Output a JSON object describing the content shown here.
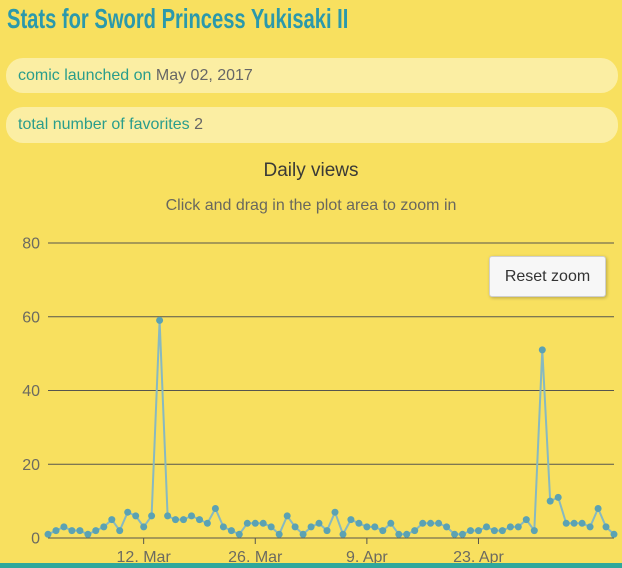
{
  "page": {
    "title": "Stats for Sword Princess Yukisaki II"
  },
  "info_bars": [
    {
      "label": "comic launched on",
      "value": "May 02, 2017"
    },
    {
      "label": "total number of favorites",
      "value": "2"
    }
  ],
  "chart": {
    "reset_zoom_label": "Reset zoom"
  },
  "chart_data": {
    "type": "line",
    "title": "Daily views",
    "subtitle": "Click and drag in the plot area to zoom in",
    "legend": "off",
    "grid": "horizontal",
    "ylim": [
      0,
      80
    ],
    "yticks": [
      0,
      20,
      40,
      60,
      80
    ],
    "xticks": [
      "12. Mar",
      "26. Mar",
      "9. Apr",
      "23. Apr"
    ],
    "x": [
      "28. Feb",
      "1. Mar",
      "2. Mar",
      "3. Mar",
      "4. Mar",
      "5. Mar",
      "6. Mar",
      "7. Mar",
      "8. Mar",
      "9. Mar",
      "10. Mar",
      "11. Mar",
      "12. Mar",
      "13. Mar",
      "14. Mar",
      "15. Mar",
      "16. Mar",
      "17. Mar",
      "18. Mar",
      "19. Mar",
      "20. Mar",
      "21. Mar",
      "22. Mar",
      "23. Mar",
      "24. Mar",
      "25. Mar",
      "26. Mar",
      "27. Mar",
      "28. Mar",
      "29. Mar",
      "30. Mar",
      "31. Mar",
      "1. Apr",
      "2. Apr",
      "3. Apr",
      "4. Apr",
      "5. Apr",
      "6. Apr",
      "7. Apr",
      "8. Apr",
      "9. Apr",
      "10. Apr",
      "11. Apr",
      "12. Apr",
      "13. Apr",
      "14. Apr",
      "15. Apr",
      "16. Apr",
      "17. Apr",
      "18. Apr",
      "19. Apr",
      "20. Apr",
      "21. Apr",
      "22. Apr",
      "23. Apr",
      "24. Apr",
      "25. Apr",
      "26. Apr",
      "27. Apr",
      "28. Apr",
      "29. Apr",
      "30. Apr",
      "1. May",
      "2. May",
      "3. May",
      "4. May",
      "5. May",
      "6. May",
      "7. May",
      "8. May",
      "9. May",
      "10. May"
    ],
    "values": [
      1,
      2,
      3,
      2,
      2,
      1,
      2,
      3,
      5,
      2,
      7,
      6,
      3,
      6,
      59,
      6,
      5,
      5,
      6,
      5,
      4,
      8,
      3,
      2,
      1,
      4,
      4,
      4,
      3,
      1,
      6,
      3,
      1,
      3,
      4,
      2,
      7,
      1,
      5,
      4,
      3,
      3,
      2,
      4,
      1,
      1,
      2,
      4,
      4,
      4,
      3,
      1,
      1,
      2,
      2,
      3,
      2,
      2,
      3,
      3,
      5,
      2,
      51,
      10,
      11,
      4,
      4,
      4,
      3,
      8,
      3,
      1
    ]
  },
  "colors": {
    "bg": "#F8E05F",
    "panel": "#FBEEA3",
    "title": "#2B99AB",
    "teal": "#2A9D8C",
    "gray": "#666666",
    "ctext": "#3A3A37",
    "stext": "#69685E",
    "axis": "#6C6B60",
    "grid": "#56554E",
    "line": "#87B9C1",
    "marker": "#5BA2B3",
    "footer": "#2FA79B"
  }
}
